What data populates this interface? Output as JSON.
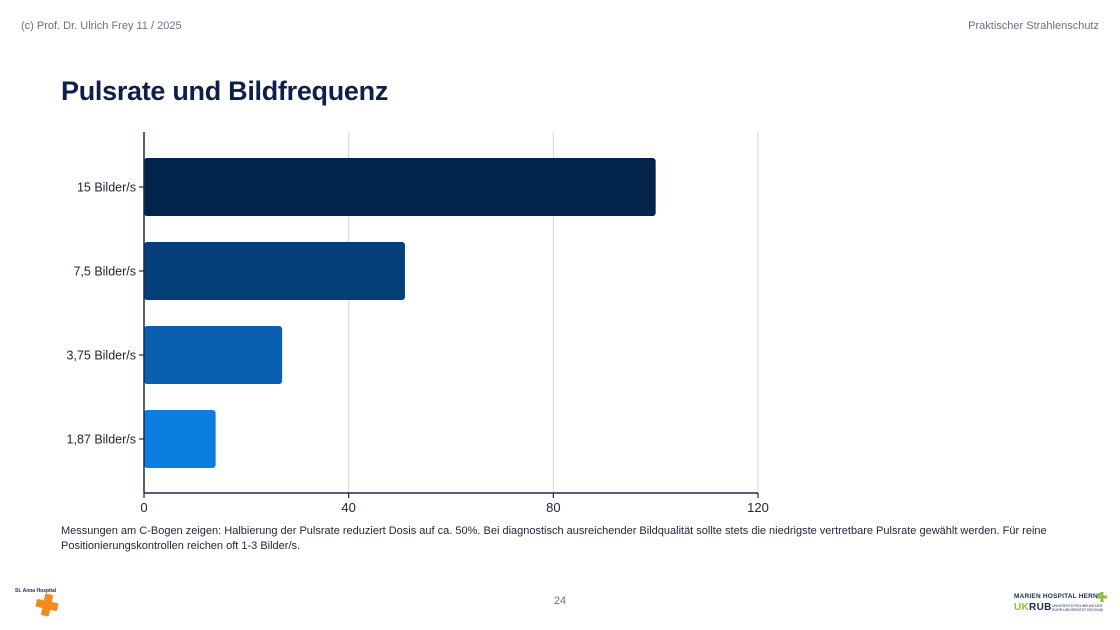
{
  "header": {
    "copyright": "(c) Prof. Dr. Ulrich Frey 11 / 2025",
    "course": "Praktischer Strahlenschutz"
  },
  "title": "Pulsrate und Bildfrequenz",
  "caption": "Messungen am C-Bogen zeigen: Halbierung der Pulsrate reduziert Dosis auf ca. 50%. Bei diagnostisch ausreichender Bildqualität sollte stets die niedrigste vertretbare Pulsrate gewählt werden. Für reine Positionierungskontrollen reichen oft 1-3 Bilder/s.",
  "page_number": "24",
  "logos": {
    "left_name": "St. Anna Hospital",
    "right_name": "MARIEN HOSPITAL HERNE",
    "right_uk": "UK",
    "right_rub": "RUB",
    "right_small": "UNIVERSITÄTSKLINIKUM DER RUHR-UNIVERSITÄT BOCHUM"
  },
  "colors": {
    "bar_1": "#02234a",
    "bar_2": "#053f7a",
    "bar_3": "#0a5fb0",
    "bar_4": "#0b7ee0",
    "axis": "#1b2a4e",
    "grid": "#d6d6da",
    "logo_orange": "#f28a1e"
  },
  "chart_data": {
    "type": "bar",
    "orientation": "horizontal",
    "categories": [
      "15 Bilder/s",
      "7,5 Bilder/s",
      "3,75 Bilder/s",
      "1,87 Bilder/s"
    ],
    "values": [
      100,
      51,
      27,
      14
    ],
    "xlim": [
      0,
      120
    ],
    "xticks": [
      "0",
      "40",
      "80",
      "120"
    ],
    "grid": true,
    "legend": "none"
  }
}
